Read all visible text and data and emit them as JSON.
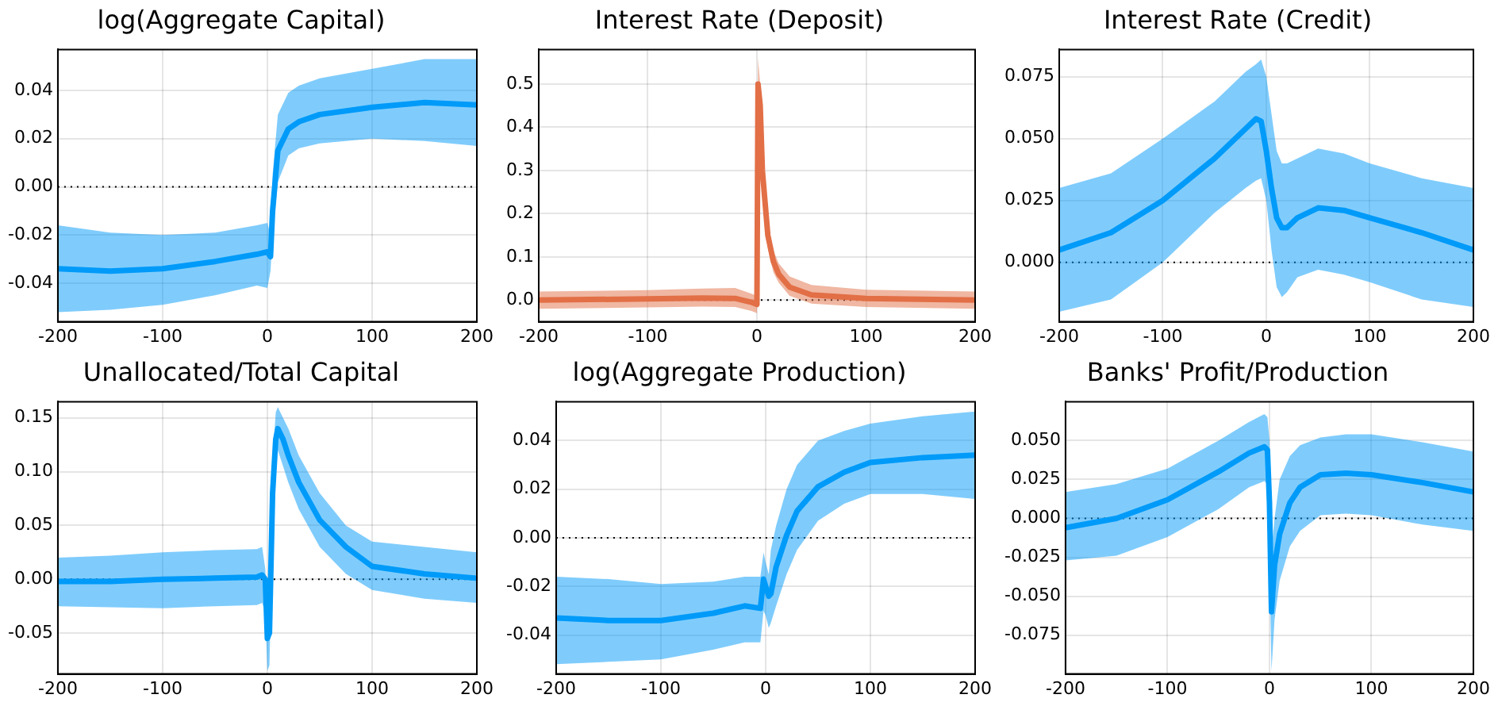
{
  "chart_data": [
    {
      "type": "line",
      "title": "log(Aggregate Capital)",
      "xlim": [
        -200,
        200
      ],
      "xticks": [
        -200,
        -100,
        0,
        100,
        200
      ],
      "ylim": [
        -0.056,
        0.057
      ],
      "yticks": [
        -0.04,
        -0.02,
        {
          "value": 0,
          "label": "0.00"
        },
        0.02,
        0.04
      ],
      "grid": true,
      "legend": false,
      "ref_lines": [
        {
          "axis": "y",
          "value": 0,
          "line_style": "dotted",
          "color": "#000000"
        }
      ],
      "series": [
        {
          "color": "#009af9",
          "x": [
            -200,
            -150,
            -100,
            -50,
            -10,
            0,
            3,
            5,
            10,
            20,
            30,
            50,
            100,
            150,
            200
          ],
          "values": [
            -0.034,
            -0.035,
            -0.034,
            -0.031,
            -0.028,
            -0.027,
            -0.029,
            -0.01,
            0.015,
            0.024,
            0.027,
            0.03,
            0.033,
            0.035,
            0.034
          ],
          "lower": [
            -0.052,
            -0.051,
            -0.049,
            -0.045,
            -0.041,
            -0.042,
            -0.035,
            -0.02,
            0.002,
            0.013,
            0.016,
            0.018,
            0.02,
            0.019,
            0.017
          ],
          "upper": [
            -0.016,
            -0.019,
            -0.02,
            -0.019,
            -0.016,
            -0.015,
            -0.02,
            0.005,
            0.03,
            0.039,
            0.042,
            0.045,
            0.049,
            0.053,
            0.053
          ]
        }
      ]
    },
    {
      "type": "line",
      "title": "Interest Rate (Deposit)",
      "xlim": [
        -200,
        200
      ],
      "xticks": [
        -200,
        -100,
        0,
        100,
        200
      ],
      "ylim": [
        -0.05,
        0.58
      ],
      "yticks": [
        {
          "value": 0,
          "label": "0.0"
        },
        0.1,
        0.2,
        0.3,
        0.4,
        0.5
      ],
      "grid": true,
      "legend": false,
      "ref_lines": [
        {
          "axis": "y",
          "value": 0,
          "line_style": "dotted",
          "color": "#000000"
        }
      ],
      "series": [
        {
          "color": "#e26f46",
          "x": [
            -200,
            -100,
            -50,
            -20,
            -5,
            0,
            1,
            3,
            5,
            10,
            15,
            20,
            30,
            50,
            100,
            200
          ],
          "values": [
            0,
            0.003,
            0.005,
            0.004,
            -0.005,
            -0.01,
            0.5,
            0.45,
            0.3,
            0.15,
            0.09,
            0.06,
            0.03,
            0.012,
            0.004,
            0
          ],
          "lower": [
            -0.02,
            -0.017,
            -0.015,
            -0.016,
            -0.025,
            -0.03,
            0.45,
            0.4,
            0.26,
            0.12,
            0.065,
            0.04,
            0.01,
            -0.008,
            -0.016,
            -0.02
          ],
          "upper": [
            0.02,
            0.023,
            0.027,
            0.028,
            0.015,
            0.01,
            0.56,
            0.5,
            0.34,
            0.18,
            0.115,
            0.085,
            0.055,
            0.035,
            0.024,
            0.02
          ]
        }
      ]
    },
    {
      "type": "line",
      "title": "Interest Rate (Credit)",
      "xlim": [
        -200,
        200
      ],
      "xticks": [
        -200,
        -100,
        0,
        100,
        200
      ],
      "ylim": [
        -0.024,
        0.086
      ],
      "yticks": [
        {
          "value": 0,
          "label": "0.000"
        },
        {
          "value": 0.025,
          "label": "0.025"
        },
        {
          "value": 0.05,
          "label": "0.050"
        },
        {
          "value": 0.075,
          "label": "0.075"
        }
      ],
      "grid": true,
      "legend": false,
      "ref_lines": [
        {
          "axis": "y",
          "value": 0,
          "line_style": "dotted",
          "color": "#000000"
        }
      ],
      "series": [
        {
          "color": "#009af9",
          "x": [
            -200,
            -150,
            -100,
            -50,
            -20,
            -10,
            -5,
            0,
            5,
            10,
            15,
            20,
            30,
            50,
            75,
            100,
            150,
            200
          ],
          "values": [
            0.005,
            0.012,
            0.025,
            0.042,
            0.054,
            0.058,
            0.057,
            0.045,
            0.03,
            0.018,
            0.014,
            0.014,
            0.018,
            0.022,
            0.021,
            0.018,
            0.012,
            0.005
          ],
          "lower": [
            -0.02,
            -0.015,
            0.0,
            0.02,
            0.03,
            0.033,
            0.034,
            0.025,
            0.005,
            -0.01,
            -0.014,
            -0.012,
            -0.006,
            -0.003,
            -0.005,
            -0.008,
            -0.015,
            -0.018
          ],
          "upper": [
            0.03,
            0.036,
            0.05,
            0.065,
            0.077,
            0.08,
            0.082,
            0.075,
            0.06,
            0.045,
            0.04,
            0.04,
            0.042,
            0.046,
            0.044,
            0.04,
            0.034,
            0.03
          ]
        }
      ]
    },
    {
      "type": "line",
      "title": "Unallocated/Total Capital",
      "xlim": [
        -200,
        200
      ],
      "xticks": [
        -200,
        -100,
        0,
        100,
        200
      ],
      "ylim": [
        -0.088,
        0.165
      ],
      "yticks": [
        -0.05,
        {
          "value": 0,
          "label": "0.00"
        },
        0.05,
        {
          "value": 0.1,
          "label": "0.10"
        },
        0.15
      ],
      "grid": true,
      "legend": false,
      "ref_lines": [
        {
          "axis": "y",
          "value": 0,
          "line_style": "dotted",
          "color": "#000000"
        }
      ],
      "series": [
        {
          "color": "#009af9",
          "x": [
            -200,
            -150,
            -100,
            -50,
            -10,
            -5,
            -2,
            0,
            2,
            5,
            8,
            10,
            15,
            20,
            30,
            50,
            75,
            100,
            150,
            200
          ],
          "values": [
            -0.002,
            -0.002,
            0,
            0.001,
            0.002,
            0.004,
            0,
            -0.055,
            -0.05,
            0.08,
            0.13,
            0.14,
            0.13,
            0.115,
            0.09,
            0.055,
            0.03,
            0.012,
            0.005,
            0.001
          ],
          "lower": [
            -0.025,
            -0.026,
            -0.027,
            -0.025,
            -0.024,
            -0.022,
            -0.03,
            -0.085,
            -0.08,
            0.05,
            0.11,
            0.12,
            0.105,
            0.09,
            0.065,
            0.03,
            0.005,
            -0.01,
            -0.018,
            -0.022
          ],
          "upper": [
            0.02,
            0.022,
            0.025,
            0.027,
            0.028,
            0.03,
            0.01,
            -0.03,
            -0.02,
            0.11,
            0.155,
            0.16,
            0.15,
            0.14,
            0.115,
            0.08,
            0.05,
            0.035,
            0.03,
            0.025
          ]
        }
      ]
    },
    {
      "type": "line",
      "title": "log(Aggregate Production)",
      "xlim": [
        -200,
        200
      ],
      "xticks": [
        -200,
        -100,
        0,
        100,
        200
      ],
      "ylim": [
        -0.056,
        0.056
      ],
      "yticks": [
        -0.04,
        -0.02,
        {
          "value": 0,
          "label": "0.00"
        },
        0.02,
        0.04
      ],
      "grid": true,
      "legend": false,
      "ref_lines": [
        {
          "axis": "y",
          "value": 0,
          "line_style": "dotted",
          "color": "#000000"
        }
      ],
      "series": [
        {
          "color": "#009af9",
          "x": [
            -200,
            -150,
            -100,
            -50,
            -20,
            -5,
            -2,
            0,
            3,
            5,
            10,
            20,
            30,
            50,
            75,
            100,
            150,
            200
          ],
          "values": [
            -0.033,
            -0.034,
            -0.034,
            -0.031,
            -0.028,
            -0.029,
            -0.017,
            -0.02,
            -0.024,
            -0.023,
            -0.012,
            0.001,
            0.011,
            0.021,
            0.027,
            0.031,
            0.033,
            0.034
          ],
          "lower": [
            -0.052,
            -0.051,
            -0.05,
            -0.046,
            -0.043,
            -0.043,
            -0.03,
            -0.032,
            -0.037,
            -0.035,
            -0.028,
            -0.015,
            -0.005,
            0.007,
            0.014,
            0.018,
            0.018,
            0.016
          ],
          "upper": [
            -0.016,
            -0.017,
            -0.019,
            -0.018,
            -0.016,
            -0.016,
            -0.006,
            -0.01,
            -0.015,
            -0.005,
            0.005,
            0.02,
            0.03,
            0.04,
            0.044,
            0.047,
            0.05,
            0.052
          ]
        }
      ]
    },
    {
      "type": "line",
      "title": "Banks' Profit/Production",
      "xlim": [
        -200,
        200
      ],
      "xticks": [
        -200,
        -100,
        0,
        100,
        200
      ],
      "ylim": [
        -0.1,
        0.075
      ],
      "yticks": [
        {
          "value": -0.075,
          "label": "-0.075"
        },
        {
          "value": -0.05,
          "label": "-0.050"
        },
        {
          "value": -0.025,
          "label": "-0.025"
        },
        {
          "value": 0,
          "label": "0.000"
        },
        {
          "value": 0.025,
          "label": "0.025"
        },
        {
          "value": 0.05,
          "label": "0.050"
        }
      ],
      "grid": true,
      "legend": false,
      "ref_lines": [
        {
          "axis": "y",
          "value": 0,
          "line_style": "dotted",
          "color": "#000000"
        }
      ],
      "series": [
        {
          "color": "#009af9",
          "x": [
            -200,
            -150,
            -100,
            -50,
            -20,
            -5,
            -2,
            0,
            2,
            5,
            10,
            20,
            30,
            50,
            75,
            100,
            150,
            200
          ],
          "values": [
            -0.006,
            0.0,
            0.012,
            0.03,
            0.042,
            0.046,
            0.044,
            0.01,
            -0.06,
            -0.03,
            -0.01,
            0.01,
            0.02,
            0.028,
            0.029,
            0.028,
            0.023,
            0.017
          ],
          "lower": [
            -0.027,
            -0.024,
            -0.012,
            0.006,
            0.02,
            0.024,
            0.022,
            -0.03,
            -0.098,
            -0.065,
            -0.04,
            -0.018,
            -0.008,
            0.002,
            0.003,
            0.002,
            -0.004,
            -0.008
          ],
          "upper": [
            0.017,
            0.022,
            0.032,
            0.05,
            0.062,
            0.067,
            0.065,
            0.05,
            -0.02,
            0.0,
            0.025,
            0.04,
            0.047,
            0.052,
            0.054,
            0.054,
            0.049,
            0.043
          ]
        }
      ]
    }
  ]
}
